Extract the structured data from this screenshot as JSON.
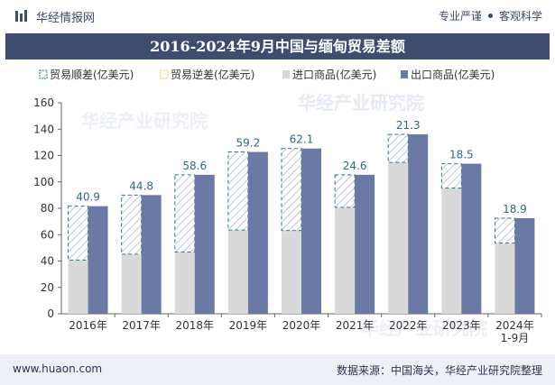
{
  "header": {
    "site_name": "华经情报网",
    "tags": [
      "专业严谨",
      "客观科学"
    ]
  },
  "footer": {
    "url": "www.huaon.com",
    "source": "数据来源：中国海关，华经产业研究院整理"
  },
  "watermark": "华经产业研究院",
  "colors": {
    "title_bg": "#3e4d6e",
    "import": "#d9d9d9",
    "export": "#6b7aa4",
    "surplus_stroke": "#2e7a86",
    "deficit_stroke": "#e3c95c"
  },
  "chart_data": {
    "type": "bar",
    "title": "2016-2024年9月中国与缅甸贸易差额",
    "categories": [
      "2016年",
      "2017年",
      "2018年",
      "2019年",
      "2020年",
      "2021年",
      "2022年",
      "2023年",
      "2024年 1-9月"
    ],
    "series": [
      {
        "name": "进口商品(亿美元)",
        "values": [
          40.7,
          45.2,
          46.8,
          63.5,
          63.2,
          80.8,
          114.8,
          95.3,
          53.6
        ]
      },
      {
        "name": "出口商品(亿美元)",
        "values": [
          81.6,
          90.0,
          105.4,
          122.7,
          125.3,
          105.4,
          136.1,
          113.8,
          72.5
        ]
      },
      {
        "name": "贸易顺差(亿美元)",
        "values": [
          40.9,
          44.8,
          58.6,
          59.2,
          62.1,
          24.6,
          21.3,
          18.5,
          18.9
        ]
      },
      {
        "name": "贸易逆差(亿美元)",
        "values": [
          0,
          0,
          0,
          0,
          0,
          0,
          0,
          0,
          0
        ]
      }
    ],
    "legend": [
      "贸易顺差(亿美元)",
      "贸易逆差(亿美元)",
      "进口商品(亿美元)",
      "出口商品(亿美元)"
    ],
    "ylim": [
      0,
      160
    ],
    "yticks": [
      0,
      20,
      40,
      60,
      80,
      100,
      120,
      140,
      160
    ],
    "xlabel": "",
    "ylabel": ""
  }
}
